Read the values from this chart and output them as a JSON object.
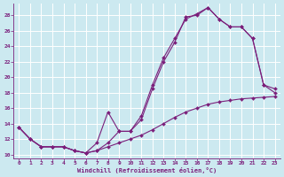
{
  "title": "",
  "xlabel": "Windchill (Refroidissement éolien,°C)",
  "background_color": "#cce9f0",
  "line_color": "#7b1f7b",
  "grid_color": "#ffffff",
  "xlim": [
    -0.5,
    23.5
  ],
  "ylim": [
    9.5,
    29.5
  ],
  "xticks": [
    0,
    1,
    2,
    3,
    4,
    5,
    6,
    7,
    8,
    9,
    10,
    11,
    12,
    13,
    14,
    15,
    16,
    17,
    18,
    19,
    20,
    21,
    22,
    23
  ],
  "yticks": [
    10,
    12,
    14,
    16,
    18,
    20,
    22,
    24,
    26,
    28
  ],
  "curve1": [
    13.5,
    12.0,
    11.0,
    11.0,
    11.0,
    10.5,
    10.2,
    10.5,
    11.0,
    11.5,
    12.0,
    12.5,
    13.2,
    14.0,
    14.8,
    15.5,
    16.0,
    16.5,
    16.8,
    17.0,
    17.2,
    17.3,
    17.4,
    17.5
  ],
  "curve2": [
    13.5,
    12.0,
    11.0,
    11.0,
    11.0,
    10.5,
    10.2,
    11.5,
    15.5,
    13.0,
    13.0,
    15.0,
    19.0,
    22.5,
    25.0,
    27.5,
    28.2,
    29.0,
    27.5,
    26.5,
    26.5,
    25.0,
    19.0,
    18.5
  ],
  "curve3": [
    13.5,
    12.0,
    11.0,
    11.0,
    11.0,
    10.5,
    10.2,
    10.5,
    11.5,
    13.0,
    13.0,
    14.5,
    18.5,
    22.0,
    24.5,
    27.8,
    28.0,
    29.0,
    27.5,
    26.5,
    26.5,
    25.0,
    19.0,
    18.0
  ]
}
